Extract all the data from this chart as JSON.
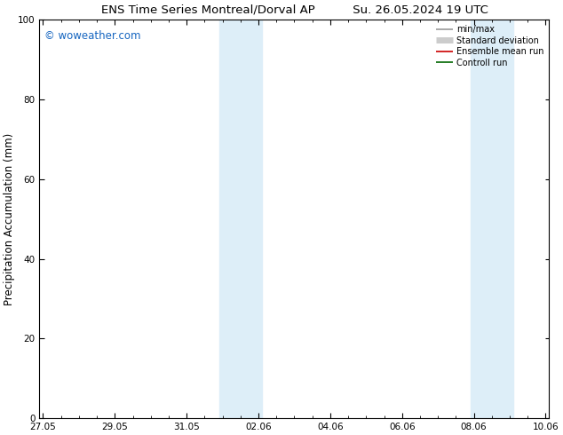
{
  "title_left": "ENS Time Series Montreal/Dorval AP",
  "title_right": "Su. 26.05.2024 19 UTC",
  "ylabel": "Precipitation Accumulation (mm)",
  "watermark": "© woweather.com",
  "ylim": [
    0,
    100
  ],
  "yticks": [
    0,
    20,
    40,
    60,
    80,
    100
  ],
  "xtick_positions": [
    0,
    2,
    4,
    6,
    8,
    10,
    12,
    14
  ],
  "xtick_labels": [
    "27.05",
    "29.05",
    "31.05",
    "02.06",
    "04.06",
    "06.06",
    "08.06",
    "10.06"
  ],
  "xlim": [
    -0.1,
    14.1
  ],
  "shaded_bands": [
    [
      4.9,
      5.5
    ],
    [
      5.5,
      6.1
    ],
    [
      11.9,
      12.5
    ],
    [
      12.5,
      13.1
    ]
  ],
  "shaded_color": "#ddeef8",
  "background_color": "#ffffff",
  "watermark_color": "#1565c0",
  "legend_items": [
    {
      "label": "min/max",
      "color": "#999999",
      "linewidth": 1.2,
      "linestyle": "-"
    },
    {
      "label": "Standard deviation",
      "color": "#cccccc",
      "linewidth": 5,
      "linestyle": "-"
    },
    {
      "label": "Ensemble mean run",
      "color": "#cc0000",
      "linewidth": 1.2,
      "linestyle": "-"
    },
    {
      "label": "Controll run",
      "color": "#006600",
      "linewidth": 1.2,
      "linestyle": "-"
    }
  ],
  "tick_label_fontsize": 7.5,
  "axis_label_fontsize": 8.5,
  "title_fontsize": 9.5,
  "watermark_fontsize": 8.5,
  "legend_fontsize": 7
}
